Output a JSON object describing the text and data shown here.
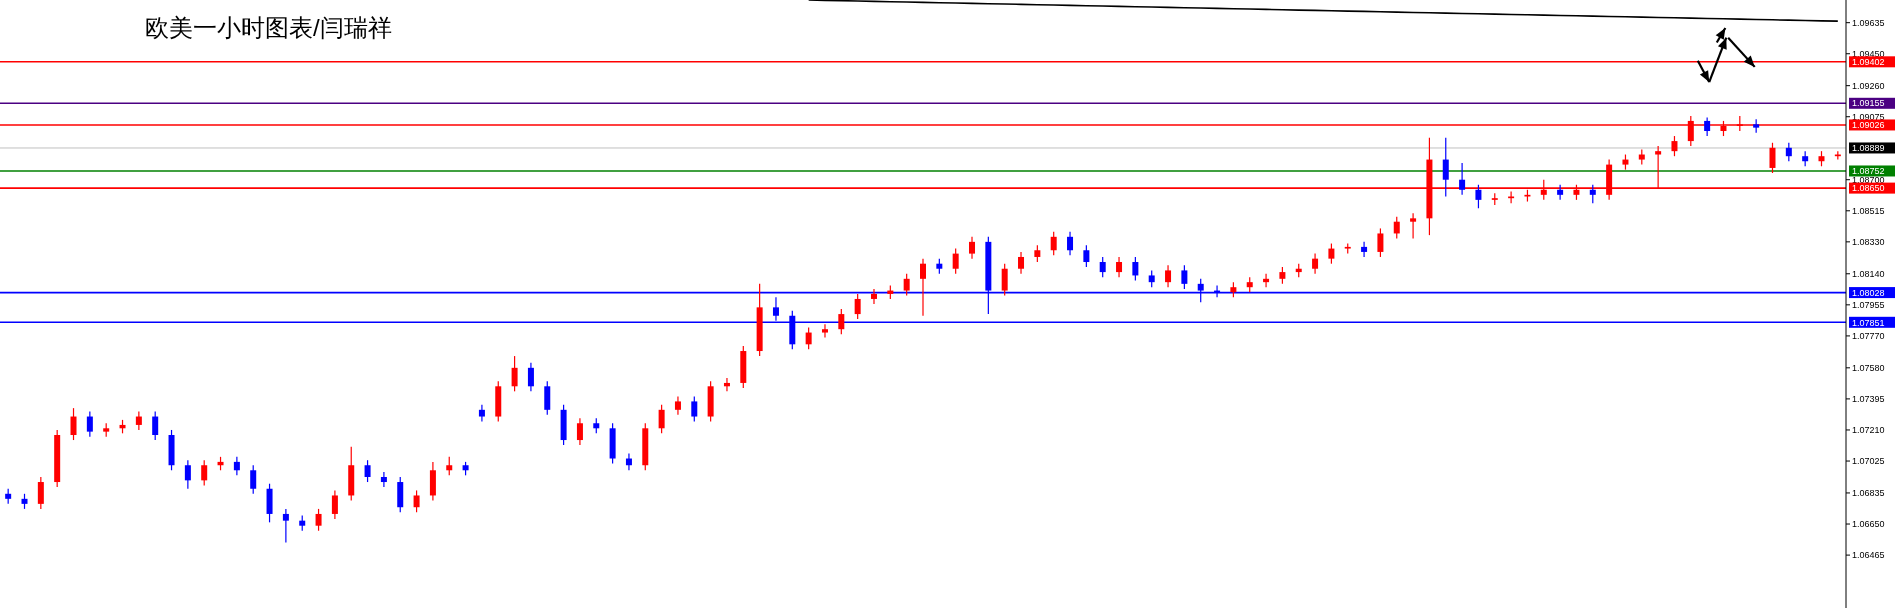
{
  "chart_data": {
    "type": "candlestick",
    "title": "欧美一小时图表/闫瑞祥",
    "categories": [
      null,
      null,
      null,
      null,
      null,
      null,
      null,
      null,
      null,
      null,
      null,
      null,
      null,
      null,
      null,
      null,
      null,
      null,
      null,
      null,
      null,
      null,
      null,
      null,
      null,
      null,
      null,
      null,
      null,
      null,
      null,
      null,
      null,
      null,
      null,
      null,
      null,
      null,
      null,
      null,
      null,
      null,
      null,
      null,
      null,
      null,
      null,
      null,
      null,
      null,
      null,
      null,
      null,
      null,
      null,
      null,
      null,
      null,
      null,
      null,
      null,
      null,
      null,
      null,
      null,
      null,
      null,
      null,
      null,
      null,
      null,
      null,
      null,
      null,
      null,
      null,
      null,
      null,
      null,
      null,
      null,
      null,
      null,
      null,
      null,
      null,
      null,
      null,
      null,
      null,
      null,
      null,
      null,
      null,
      null,
      null,
      null,
      null,
      null,
      null,
      null,
      null,
      null,
      null,
      null,
      null,
      null,
      null,
      null,
      null,
      null,
      null,
      null
    ],
    "colors": [
      "#0000ff",
      "#0000ff",
      "#ff0000",
      "#ff0000",
      "#ff0000",
      "#0000ff",
      "#ff0000",
      "#ff0000",
      "#ff0000",
      "#0000ff",
      "#0000ff",
      "#0000ff",
      "#ff0000",
      "#ff0000",
      "#0000ff",
      "#0000ff",
      "#0000ff",
      "#0000ff",
      "#0000ff",
      "#ff0000",
      "#ff0000",
      "#ff0000",
      "#0000ff",
      "#0000ff",
      "#0000ff",
      "#ff0000",
      "#ff0000",
      "#ff0000",
      "#0000ff",
      "#0000ff",
      "#ff0000",
      "#ff0000",
      "#0000ff",
      "#0000ff",
      "#0000ff",
      "#ff0000",
      "#0000ff",
      "#0000ff",
      "#0000ff",
      "#ff0000",
      "#ff0000",
      "#ff0000",
      "#0000ff",
      "#ff0000",
      "#ff0000",
      "#ff0000",
      "#ff0000",
      "#0000ff",
      "#0000ff",
      "#ff0000",
      "#ff0000",
      "#ff0000",
      "#ff0000",
      "#ff0000",
      "#ff0000",
      "#ff0000",
      "#ff0000",
      "#0000ff",
      "#ff0000",
      "#ff0000",
      "#0000ff",
      "#ff0000",
      "#ff0000",
      "#ff0000",
      "#ff0000",
      "#0000ff",
      "#0000ff",
      "#0000ff",
      "#ff0000",
      "#0000ff",
      "#0000ff",
      "#ff0000",
      "#0000ff",
      "#0000ff",
      "#0000ff",
      "#ff0000",
      "#ff0000",
      "#ff0000",
      "#ff0000",
      "#ff0000",
      "#ff0000",
      "#ff0000",
      "#ff0000",
      "#0000ff",
      "#ff0000",
      "#ff0000",
      "#ff0000",
      "#ff0000",
      "#0000ff",
      "#0000ff",
      "#0000ff",
      "#ff0000",
      "#ff0000",
      "#ff0000",
      "#ff0000",
      "#0000ff",
      "#ff0000",
      "#0000ff",
      "#ff0000",
      "#ff0000",
      "#ff0000",
      "#ff0000",
      "#ff0000",
      "#ff0000",
      "#0000ff",
      "#ff0000",
      "#ff0000",
      "#0000ff",
      "#ff0000",
      "#0000ff",
      "#0000ff",
      "#ff0000",
      "#ff0000"
    ],
    "ohlc": [
      [
        1.0683,
        1.0686,
        1.0677,
        1.068
      ],
      [
        1.068,
        1.0683,
        1.0674,
        1.0677
      ],
      [
        1.0677,
        1.0693,
        1.0674,
        1.069
      ],
      [
        1.069,
        1.0721,
        1.0687,
        1.0718
      ],
      [
        1.0718,
        1.0734,
        1.0715,
        1.0729
      ],
      [
        1.0729,
        1.0732,
        1.0717,
        1.072
      ],
      [
        1.072,
        1.0725,
        1.0717,
        1.0722
      ],
      [
        1.0722,
        1.0727,
        1.0719,
        1.0724
      ],
      [
        1.0724,
        1.0732,
        1.0721,
        1.0729
      ],
      [
        1.0729,
        1.0732,
        1.0715,
        1.0718
      ],
      [
        1.0718,
        1.0721,
        1.0697,
        1.07
      ],
      [
        1.07,
        1.0703,
        1.0686,
        1.0691
      ],
      [
        1.0691,
        1.0703,
        1.0688,
        1.07
      ],
      [
        1.07,
        1.0705,
        1.0697,
        1.0702
      ],
      [
        1.0702,
        1.0705,
        1.0694,
        1.0697
      ],
      [
        1.0697,
        1.07,
        1.0683,
        1.0686
      ],
      [
        1.0686,
        1.0689,
        1.0666,
        1.0671
      ],
      [
        1.0671,
        1.0674,
        1.0654,
        1.0667
      ],
      [
        1.0667,
        1.067,
        1.0661,
        1.0664
      ],
      [
        1.0664,
        1.0674,
        1.0661,
        1.0671
      ],
      [
        1.0671,
        1.0685,
        1.0668,
        1.0682
      ],
      [
        1.0682,
        1.0711,
        1.0679,
        1.07
      ],
      [
        1.07,
        1.0703,
        1.069,
        1.0693
      ],
      [
        1.0693,
        1.0696,
        1.0687,
        1.069
      ],
      [
        1.069,
        1.0693,
        1.0672,
        1.0675
      ],
      [
        1.0675,
        1.0685,
        1.0672,
        1.0682
      ],
      [
        1.0682,
        1.0702,
        1.0679,
        1.0697
      ],
      [
        1.0697,
        1.0705,
        1.0694,
        1.07
      ],
      [
        1.07,
        1.0702,
        1.0694,
        1.0697
      ],
      [
        1.0733,
        1.0736,
        1.0726,
        1.0729
      ],
      [
        1.0729,
        1.075,
        1.0726,
        1.0747
      ],
      [
        1.0747,
        1.0765,
        1.0744,
        1.0758
      ],
      [
        1.0758,
        1.0761,
        1.0744,
        1.0747
      ],
      [
        1.0747,
        1.075,
        1.073,
        1.0733
      ],
      [
        1.0733,
        1.0736,
        1.0712,
        1.0715
      ],
      [
        1.0715,
        1.0728,
        1.0712,
        1.0725
      ],
      [
        1.0725,
        1.0728,
        1.0719,
        1.0722
      ],
      [
        1.0722,
        1.0725,
        1.0701,
        1.0704
      ],
      [
        1.0704,
        1.0707,
        1.0697,
        1.07
      ],
      [
        1.07,
        1.0725,
        1.0697,
        1.0722
      ],
      [
        1.0722,
        1.0736,
        1.0719,
        1.0733
      ],
      [
        1.0733,
        1.0741,
        1.073,
        1.0738
      ],
      [
        1.0738,
        1.0741,
        1.0726,
        1.0729
      ],
      [
        1.0729,
        1.075,
        1.0726,
        1.0747
      ],
      [
        1.0747,
        1.0752,
        1.0744,
        1.0749
      ],
      [
        1.0749,
        1.0771,
        1.0746,
        1.0768
      ],
      [
        1.0768,
        1.0808,
        1.0765,
        1.0794
      ],
      [
        1.0794,
        1.08,
        1.0786,
        1.0789
      ],
      [
        1.0789,
        1.0792,
        1.0769,
        1.0772
      ],
      [
        1.0772,
        1.0782,
        1.0769,
        1.0779
      ],
      [
        1.0779,
        1.0784,
        1.0776,
        1.0781
      ],
      [
        1.0781,
        1.0793,
        1.0778,
        1.079
      ],
      [
        1.079,
        1.0802,
        1.0787,
        1.0799
      ],
      [
        1.0799,
        1.0805,
        1.0796,
        1.0802
      ],
      [
        1.0802,
        1.0807,
        1.0799,
        1.0804
      ],
      [
        1.0804,
        1.0814,
        1.0801,
        1.0811
      ],
      [
        1.0811,
        1.0823,
        1.0789,
        1.082
      ],
      [
        1.082,
        1.0823,
        1.0814,
        1.0817
      ],
      [
        1.0817,
        1.0829,
        1.0814,
        1.0826
      ],
      [
        1.0826,
        1.0836,
        1.0823,
        1.0833
      ],
      [
        1.0833,
        1.0836,
        1.079,
        1.0804
      ],
      [
        1.0804,
        1.082,
        1.0801,
        1.0817
      ],
      [
        1.0817,
        1.0827,
        1.0814,
        1.0824
      ],
      [
        1.0824,
        1.0831,
        1.0821,
        1.0828
      ],
      [
        1.0828,
        1.0839,
        1.0825,
        1.0836
      ],
      [
        1.0836,
        1.0839,
        1.0825,
        1.0828
      ],
      [
        1.0828,
        1.0831,
        1.0818,
        1.0821
      ],
      [
        1.0821,
        1.0824,
        1.0812,
        1.0815
      ],
      [
        1.0815,
        1.0824,
        1.0812,
        1.0821
      ],
      [
        1.0821,
        1.0824,
        1.081,
        1.0813
      ],
      [
        1.0813,
        1.0816,
        1.0806,
        1.0809
      ],
      [
        1.0809,
        1.0819,
        1.0806,
        1.0816
      ],
      [
        1.0816,
        1.0819,
        1.0805,
        1.0808
      ],
      [
        1.0808,
        1.0811,
        1.0797,
        1.0804
      ],
      [
        1.0804,
        1.0807,
        1.08,
        1.0803
      ],
      [
        1.0803,
        1.0809,
        1.08,
        1.0806
      ],
      [
        1.0806,
        1.0812,
        1.0803,
        1.0809
      ],
      [
        1.0809,
        1.0814,
        1.0806,
        1.0811
      ],
      [
        1.0811,
        1.0818,
        1.0808,
        1.0815
      ],
      [
        1.0815,
        1.082,
        1.0812,
        1.0817
      ],
      [
        1.0817,
        1.0826,
        1.0814,
        1.0823
      ],
      [
        1.0823,
        1.0832,
        1.082,
        1.0829
      ],
      [
        1.0829,
        1.0832,
        1.0826,
        1.083
      ],
      [
        1.083,
        1.0833,
        1.0824,
        1.0827
      ],
      [
        1.0827,
        1.0841,
        1.0824,
        1.0838
      ],
      [
        1.0838,
        1.0848,
        1.0835,
        1.0845
      ],
      [
        1.0845,
        1.085,
        1.0835,
        1.0847
      ],
      [
        1.0847,
        1.0895,
        1.0837,
        1.0882
      ],
      [
        1.0882,
        1.0895,
        1.086,
        1.087
      ],
      [
        1.087,
        1.088,
        1.0861,
        1.0864
      ],
      [
        1.0864,
        1.0867,
        1.0853,
        1.0858
      ],
      [
        1.0858,
        1.0862,
        1.0855,
        1.0859
      ],
      [
        1.0859,
        1.0863,
        1.0856,
        1.086
      ],
      [
        1.086,
        1.0864,
        1.0857,
        1.0861
      ],
      [
        1.0861,
        1.087,
        1.0858,
        1.0864
      ],
      [
        1.0864,
        1.0867,
        1.0858,
        1.0861
      ],
      [
        1.0861,
        1.0867,
        1.0858,
        1.0864
      ],
      [
        1.0864,
        1.0867,
        1.0856,
        1.0861
      ],
      [
        1.0861,
        1.0882,
        1.0858,
        1.0879
      ],
      [
        1.0879,
        1.0885,
        1.0876,
        1.0882
      ],
      [
        1.0882,
        1.0888,
        1.0879,
        1.0885
      ],
      [
        1.0885,
        1.089,
        1.0865,
        1.0887
      ],
      [
        1.0887,
        1.0896,
        1.0884,
        1.0893
      ],
      [
        1.0893,
        1.0908,
        1.089,
        1.0905
      ],
      [
        1.0905,
        1.0907,
        1.0896,
        1.0899
      ],
      [
        1.0899,
        1.0905,
        1.0896,
        1.0902
      ],
      [
        1.0902,
        1.0908,
        1.0899,
        1.0903
      ],
      [
        1.0903,
        1.0906,
        1.0898,
        1.0901
      ],
      [
        1.0877,
        1.0892,
        1.0874,
        1.0889
      ],
      [
        1.0889,
        1.0892,
        1.0881,
        1.0884
      ],
      [
        1.0884,
        1.0887,
        1.0878,
        1.0881
      ],
      [
        1.0881,
        1.0887,
        1.0878,
        1.0884
      ],
      [
        1.0884,
        1.0887,
        1.0882,
        1.0885
      ]
    ],
    "series": [
      {
        "type": "line",
        "color": "#000000",
        "values": [
          null,
          null,
          null,
          null,
          null,
          null,
          null,
          null,
          null,
          null,
          null,
          null,
          null,
          null,
          null,
          null,
          null,
          null,
          null,
          null,
          null,
          null,
          null,
          null,
          null,
          null,
          null,
          null,
          null,
          null,
          null,
          null,
          null,
          null,
          null,
          null,
          null,
          null,
          null,
          null,
          null,
          null,
          null,
          null,
          null,
          null,
          null,
          null,
          null,
          1.0977,
          1.09768,
          1.09766,
          1.09764,
          1.09762,
          1.0976,
          1.09758,
          1.09756,
          1.09754,
          1.09752,
          1.0975,
          1.09748,
          1.09746,
          1.09744,
          1.09742,
          1.0974,
          1.09738,
          1.09736,
          1.09734,
          1.09732,
          1.0973,
          1.09728,
          1.09726,
          1.09724,
          1.09722,
          1.0972,
          1.09718,
          1.09716,
          1.09714,
          1.09712,
          1.0971,
          1.09708,
          1.09706,
          1.09704,
          1.09702,
          1.097,
          1.09698,
          1.09696,
          1.09694,
          1.09692,
          1.0969,
          1.09688,
          1.09686,
          1.09684,
          1.09682,
          1.0968,
          1.09678,
          1.09676,
          1.09674,
          1.09672,
          1.0967,
          1.09668,
          1.09666,
          1.09664,
          1.09662,
          1.0966,
          1.09658,
          1.09656,
          1.09654,
          1.09652,
          1.0965,
          1.09648,
          1.09646,
          1.09644
        ]
      }
    ],
    "ylim": [
      1.0615,
      1.0977
    ],
    "yticks": [
      1.09635,
      {
        "value": 1.0945,
        "label": "1.09450"
      },
      {
        "value": 1.0926,
        "label": "1.09260"
      },
      1.09075,
      {
        "value": 1.087,
        "label": "1.08700"
      },
      1.08515,
      {
        "value": 1.0833,
        "label": "1.08330"
      },
      {
        "value": 1.0814,
        "label": "1.08140"
      },
      1.07955,
      {
        "value": 1.0777,
        "label": "1.07770"
      },
      {
        "value": 1.0758,
        "label": "1.07580"
      },
      1.07395,
      {
        "value": 1.0721,
        "label": "1.07210"
      },
      1.07025,
      1.06835,
      {
        "value": 1.0665,
        "label": "1.06650"
      },
      1.06465
    ],
    "tick_labels": "y",
    "ref_lines": [
      {
        "axis": "y",
        "value": 1.09402,
        "label": "1.09402",
        "color": "#ff0000"
      },
      {
        "axis": "y",
        "value": 1.09155,
        "label": "1.09155",
        "color": "#4b0082"
      },
      {
        "axis": "y",
        "value": 1.09026,
        "label": "1.09026",
        "color": "#ff0000"
      },
      {
        "axis": "y",
        "value": 1.08889,
        "label": "1.08889",
        "color": "#c0c0c0"
      },
      {
        "axis": "y",
        "value": 1.08752,
        "label": "1.08752",
        "color": "#008000"
      },
      {
        "axis": "y",
        "value": 1.0865,
        "label": "1.08650",
        "color": "#ff0000"
      },
      {
        "axis": "y",
        "value": 1.08028,
        "label": "1.08028",
        "color": "#0000ff"
      },
      {
        "axis": "y",
        "value": 1.07851,
        "label": "1.07851",
        "color": "#0000ff"
      }
    ]
  }
}
